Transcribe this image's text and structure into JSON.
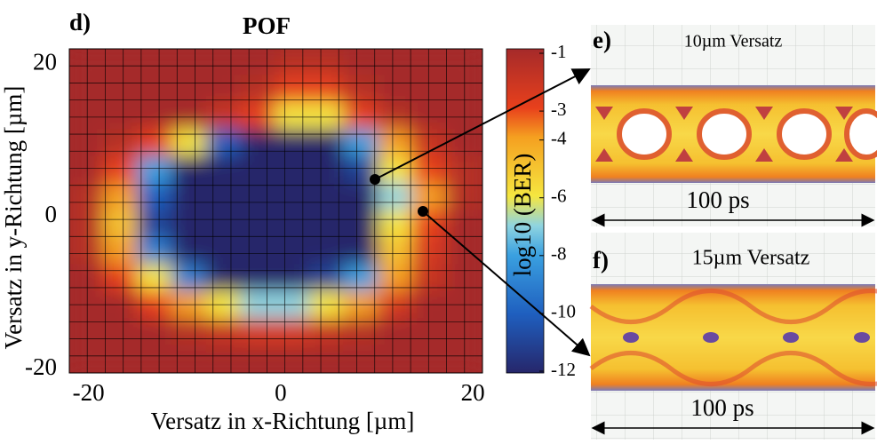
{
  "chart_data": {
    "type": "heatmap",
    "panel_label": "d)",
    "title": "POF",
    "xlabel": "Versatz in x-Richtung [µm]",
    "ylabel": "Versatz in y-Richtung [µm]",
    "colorbar_label": "log10 (BER)",
    "xlim": [
      -22,
      21
    ],
    "ylim": [
      -20.5,
      22
    ],
    "xticks": [
      -20,
      0,
      20
    ],
    "yticks": [
      20,
      0,
      -20
    ],
    "clim": [
      -12,
      -1
    ],
    "cticks": [
      -1,
      -3,
      -4,
      -6,
      -8,
      -10,
      -12
    ],
    "colorscale": [
      [
        -12,
        "#26266a"
      ],
      [
        -10,
        "#1f5fbf"
      ],
      [
        -8,
        "#3aa0e0"
      ],
      [
        -7,
        "#8fd4e0"
      ],
      [
        -6,
        "#f5e640"
      ],
      [
        -4,
        "#f5a020"
      ],
      [
        -3,
        "#e8401c"
      ],
      [
        -1,
        "#a52a2a"
      ]
    ],
    "x": [
      -20.2,
      -16.6,
      -13.1,
      -9.5,
      -5.9,
      -2.3,
      1.2,
      4.8,
      8.4,
      12,
      15.5,
      19.1
    ],
    "y": [
      20.2,
      16.7,
      13.1,
      9.6,
      6.1,
      2.5,
      -1,
      -4.5,
      -8.1,
      -11.6,
      -15.2,
      -18.7
    ],
    "z": [
      [
        -1,
        -1,
        -1,
        -1,
        -1,
        -1,
        -1.5,
        -1.5,
        -1,
        -1,
        -1,
        -1
      ],
      [
        -1,
        -1,
        -1,
        -1,
        -1,
        -1.5,
        -3,
        -3,
        -1.5,
        -1,
        -1,
        -1
      ],
      [
        -1,
        -1,
        -1,
        -1,
        -2,
        -3,
        -6,
        -6,
        -3,
        -1.5,
        -1,
        -1
      ],
      [
        -1,
        -1.5,
        -3,
        -6,
        -10,
        -12,
        -12,
        -12,
        -8,
        -4,
        -2,
        -1
      ],
      [
        -1,
        -3,
        -8,
        -12,
        -12,
        -12,
        -12,
        -12,
        -11,
        -6,
        -3,
        -1.5
      ],
      [
        -1.5,
        -4,
        -10,
        -12,
        -12,
        -12,
        -12,
        -12,
        -12,
        -7,
        -4,
        -1.5
      ],
      [
        -1.5,
        -5,
        -11,
        -12,
        -12,
        -12,
        -12,
        -12,
        -12,
        -6,
        -3,
        -1
      ],
      [
        -1.5,
        -4,
        -9,
        -12,
        -12,
        -12,
        -12,
        -12,
        -12,
        -5,
        -2.5,
        -1
      ],
      [
        -1,
        -3,
        -6,
        -9,
        -12,
        -12,
        -12,
        -11,
        -8,
        -4,
        -2,
        -1
      ],
      [
        -1,
        -1,
        -3,
        -4,
        -6,
        -7,
        -7,
        -6,
        -4,
        -2.5,
        -1,
        -1
      ],
      [
        -1,
        -1,
        -1,
        -1.5,
        -2,
        -2.5,
        -2.5,
        -2,
        -1.5,
        -1,
        -1,
        -1
      ],
      [
        -1,
        -1,
        -1,
        -1,
        -1,
        -1,
        -1,
        -1,
        -1,
        -1,
        -1,
        -1
      ]
    ]
  },
  "eye_e": {
    "label": "e)",
    "title": "10µm Versatz",
    "span": "100 ps"
  },
  "eye_f": {
    "label": "f)",
    "title": "15µm Versatz",
    "span": "100 ps"
  }
}
